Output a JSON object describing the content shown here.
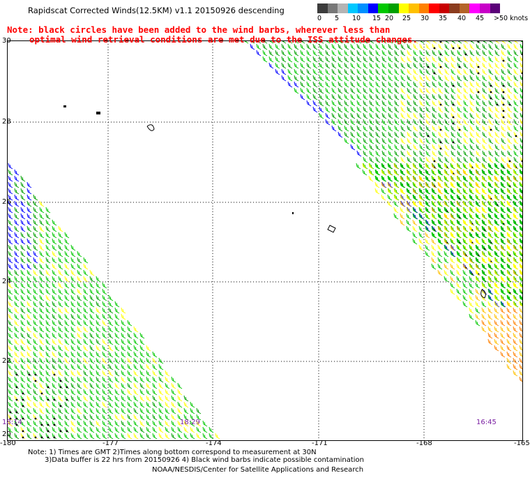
{
  "title": "Rapidscat Corrected Winds(12.5KM) v1.1 20150926 descending",
  "note_line1": "Note: black circles have been added to the wind barbs, wherever less than",
  "note_line2": "optimal wind retrieval conditions are met due to the ISS attitude changes.",
  "scale": {
    "colors": [
      "#3c3c3c",
      "#787878",
      "#b4b4b4",
      "#00c8ff",
      "#0090ff",
      "#0000ff",
      "#00c800",
      "#00a000",
      "#ffff00",
      "#ffc000",
      "#ff8000",
      "#ff0000",
      "#c80000",
      "#8b3c1e",
      "#b46428",
      "#ff00ff",
      "#c800c8",
      "#5a0078"
    ],
    "labels": [
      "0",
      "5",
      "10",
      "15",
      "20",
      "25",
      "30",
      "35",
      "40",
      "45",
      ">50 knots"
    ]
  },
  "lat_labels": [
    "30",
    "28",
    "26",
    "24",
    "22",
    "20"
  ],
  "lon_labels": [
    "-180",
    "-177",
    "-174",
    "-171",
    "-168",
    "-165"
  ],
  "times": [
    "18:14",
    "18:29",
    "16:45"
  ],
  "footer": {
    "line1": "Note: 1) Times are GMT 2)Times along bottom correspond to measurement at 30N",
    "line2": "3)Data buffer is 22 hrs from 20150926 4) Black wind barbs indicate possible contamination",
    "line3": "NOAA/NESDIS/Center for Satellite Applications and Research"
  }
}
